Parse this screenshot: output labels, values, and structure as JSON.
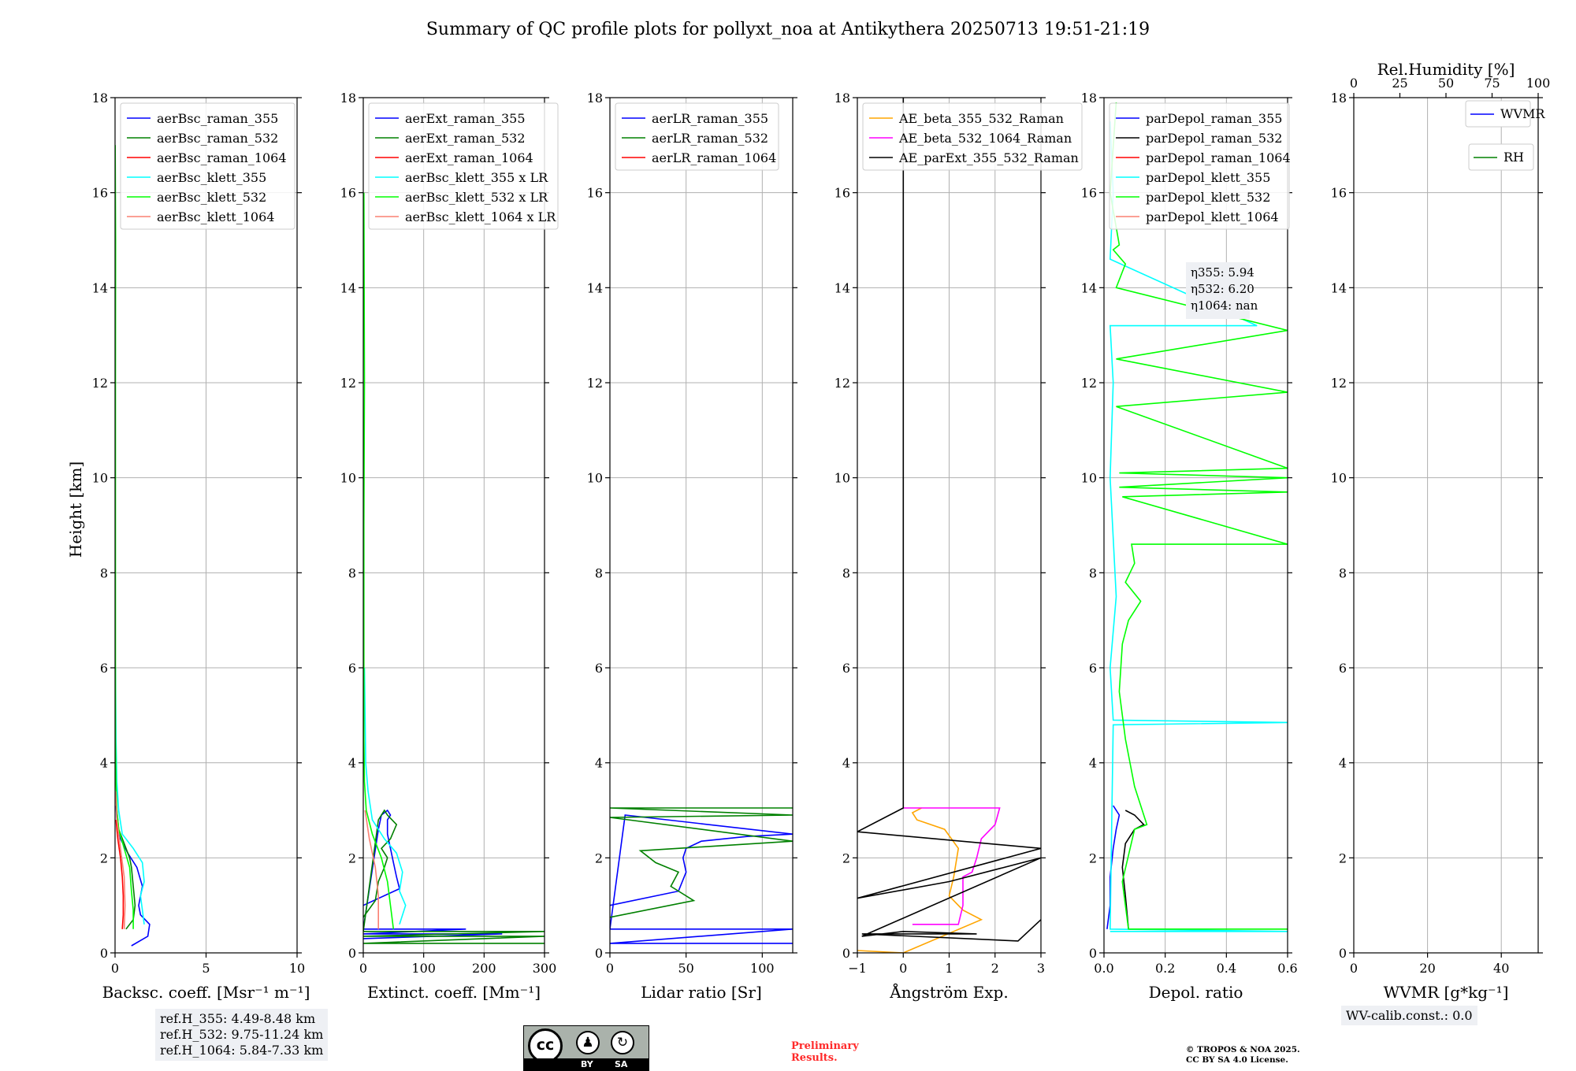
{
  "title": "Summary of QC profile plots for pollyxt_noa at Antikythera 20250713 19:51-21:19",
  "ref_heights": [
    "ref.H_355: 4.49-8.48 km",
    "ref.H_532: 9.75-11.24 km",
    "ref.H_1064: 5.84-7.33 km"
  ],
  "wv_calib": "WV-calib.const.: 0.0",
  "preliminary": [
    "Preliminary",
    "Results."
  ],
  "copyright": [
    "© TROPOS & NOA 2025.",
    "CC BY SA 4.0 License."
  ],
  "license_badge": {
    "cc": "cc",
    "by": "BY",
    "sa": "SA"
  },
  "colors": {
    "blue": "#0000ff",
    "green": "#008000",
    "red": "#ff0000",
    "cyan": "#00ffff",
    "lime": "#00ff00",
    "salmon": "#fa8072",
    "orange": "#ffa500",
    "magenta": "#ff00ff",
    "black": "#000000"
  },
  "chart_data": [
    {
      "type": "line",
      "id": "bsc",
      "xlabel": "Backsc. coeff. [Msr⁻¹ m⁻¹]",
      "ylabel": "Height [km]",
      "xlim": [
        0,
        10
      ],
      "ylim": [
        0,
        18
      ],
      "xticks": [
        "0",
        "5",
        "10"
      ],
      "yticks": [
        "0",
        "2",
        "4",
        "6",
        "8",
        "10",
        "12",
        "14",
        "16",
        "18"
      ],
      "legend": "top-left",
      "series": [
        {
          "name": "aerBsc_raman_355",
          "color": "#0000ff",
          "x": [
            0.9,
            1.8,
            1.9,
            1.4,
            1.3,
            1.5,
            1.2,
            0.7,
            0.3,
            0.1,
            0.05
          ],
          "y": [
            0.15,
            0.35,
            0.6,
            0.8,
            1.0,
            1.4,
            1.8,
            2.1,
            2.4,
            2.8,
            3.1
          ]
        },
        {
          "name": "aerBsc_raman_532",
          "color": "#008000",
          "x": [
            0.6,
            1.0,
            1.1,
            1.0,
            0.9,
            0.8,
            0.5,
            0.2,
            0.1
          ],
          "y": [
            0.5,
            0.7,
            1.0,
            1.4,
            1.8,
            2.0,
            2.3,
            2.6,
            3.0
          ]
        },
        {
          "name": "aerBsc_raman_1064",
          "color": "#ff0000",
          "x": [
            0.4,
            0.45,
            0.45,
            0.4,
            0.3,
            0.15,
            0.05
          ],
          "y": [
            0.5,
            0.8,
            1.2,
            1.6,
            2.0,
            2.4,
            2.8
          ]
        },
        {
          "name": "aerBsc_klett_355",
          "color": "#00ffff",
          "x": [
            1.6,
            1.5,
            1.4,
            1.6,
            1.5,
            1.0,
            0.4,
            0.2,
            0.1,
            0.05,
            0.02
          ],
          "y": [
            0.6,
            0.9,
            1.2,
            1.5,
            1.9,
            2.2,
            2.5,
            3.0,
            3.6,
            4.5,
            6.0
          ]
        },
        {
          "name": "aerBsc_klett_532",
          "color": "#00ff00",
          "x": [
            1.0,
            1.0,
            0.9,
            0.8,
            0.5,
            0.2,
            0.1,
            0.05,
            0.02,
            0.02,
            0.02,
            0.02,
            0.02,
            0.03,
            0.01
          ],
          "y": [
            0.5,
            0.9,
            1.3,
            1.8,
            2.2,
            2.6,
            3.0,
            3.6,
            4.5,
            6.0,
            8.0,
            10.0,
            12.0,
            15.0,
            17.0
          ]
        },
        {
          "name": "aerBsc_klett_1064",
          "color": "#fa8072",
          "x": [
            0.5,
            0.55,
            0.5,
            0.3,
            0.1,
            0.03
          ],
          "y": [
            0.5,
            1.0,
            1.6,
            2.2,
            2.8,
            3.4
          ]
        }
      ]
    },
    {
      "type": "line",
      "id": "ext",
      "xlabel": "Extinct. coeff. [Mm⁻¹]",
      "xlim": [
        0,
        300
      ],
      "ylim": [
        0,
        18
      ],
      "xticks": [
        "0",
        "100",
        "200",
        "300"
      ],
      "yticks": [
        "0",
        "2",
        "4",
        "6",
        "8",
        "10",
        "12",
        "14",
        "16",
        "18"
      ],
      "legend": "top-left",
      "series": [
        {
          "name": "aerExt_raman_355",
          "color": "#0000ff",
          "x": [
            0,
            60,
            55,
            50,
            45,
            40,
            40,
            45,
            40,
            30,
            25,
            0,
            170,
            0,
            230,
            0
          ],
          "y": [
            1.0,
            1.35,
            1.6,
            1.9,
            2.2,
            2.5,
            2.8,
            2.9,
            3.0,
            2.9,
            2.6,
            0.5,
            0.5,
            0.4,
            0.4,
            0.3
          ]
        },
        {
          "name": "aerExt_raman_532",
          "color": "#008000",
          "x": [
            0,
            20,
            25,
            35,
            40,
            30,
            45,
            55,
            40,
            35,
            25,
            0,
            300,
            0,
            300,
            0,
            300
          ],
          "y": [
            0.75,
            1.1,
            1.5,
            1.8,
            2.0,
            2.2,
            2.4,
            2.7,
            2.9,
            3.0,
            2.8,
            0.45,
            0.45,
            0.35,
            0.35,
            0.2,
            0.2
          ]
        },
        {
          "name": "aerExt_raman_1064",
          "color": "#ff0000",
          "x": [],
          "y": []
        },
        {
          "name": "aerBsc_klett_355 x LR",
          "color": "#00ffff",
          "x": [
            60,
            70,
            60,
            65,
            55,
            35,
            15,
            8,
            4,
            3,
            2
          ],
          "y": [
            0.6,
            1.0,
            1.3,
            1.7,
            2.1,
            2.4,
            2.8,
            3.4,
            4.0,
            5.0,
            6.0
          ]
        },
        {
          "name": "aerBsc_klett_532 x LR",
          "color": "#00ff00",
          "x": [
            50,
            45,
            40,
            30,
            15,
            5,
            2,
            1,
            1,
            1,
            2,
            1
          ],
          "y": [
            0.5,
            1.0,
            1.5,
            2.0,
            2.5,
            3.0,
            3.6,
            4.5,
            6.0,
            9.0,
            12.0,
            16.0
          ]
        },
        {
          "name": "aerBsc_klett_1064 x LR",
          "color": "#fa8072",
          "x": [
            25,
            25,
            20,
            10,
            3
          ],
          "y": [
            0.5,
            1.2,
            1.8,
            2.4,
            3.0
          ]
        }
      ]
    },
    {
      "type": "line",
      "id": "lr",
      "xlabel": "Lidar ratio [Sr]",
      "xlim": [
        0,
        120
      ],
      "ylim": [
        0,
        18
      ],
      "xticks": [
        "0",
        "50",
        "100"
      ],
      "yticks": [
        "0",
        "2",
        "4",
        "6",
        "8",
        "10",
        "12",
        "14",
        "16",
        "18"
      ],
      "legend": "top-left",
      "series": [
        {
          "name": "aerLR_raman_355",
          "color": "#0000ff",
          "x": [
            0,
            45,
            50,
            48,
            50,
            60,
            90,
            120,
            10,
            0,
            120,
            0,
            120
          ],
          "y": [
            1.0,
            1.3,
            1.7,
            2.0,
            2.2,
            2.35,
            2.45,
            2.5,
            2.9,
            0.5,
            0.5,
            0.2,
            0.2
          ]
        },
        {
          "name": "aerLR_raman_532",
          "color": "#008000",
          "x": [
            0,
            55,
            40,
            45,
            30,
            20,
            120,
            0,
            120,
            0,
            120
          ],
          "y": [
            0.75,
            1.1,
            1.4,
            1.7,
            1.9,
            2.15,
            2.35,
            2.85,
            2.9,
            3.05,
            3.05
          ]
        },
        {
          "name": "aerLR_raman_1064",
          "color": "#ff0000",
          "x": [],
          "y": []
        }
      ]
    },
    {
      "type": "line",
      "id": "ae",
      "xlabel": "Ångström Exp.",
      "xlim": [
        -1,
        3
      ],
      "ylim": [
        0,
        18
      ],
      "xticks": [
        "−1",
        "0",
        "1",
        "2",
        "3"
      ],
      "yticks": [
        "0",
        "2",
        "4",
        "6",
        "8",
        "10",
        "12",
        "14",
        "16",
        "18"
      ],
      "legend": "top-left",
      "series": [
        {
          "name": "AE_beta_355_532_Raman",
          "color": "#ffa500",
          "x": [
            -1,
            0,
            1.7,
            1.3,
            1.0,
            1.1,
            1.2,
            0.9,
            0.3,
            0.2,
            0.4
          ],
          "y": [
            0.05,
            0.0,
            0.7,
            0.9,
            1.2,
            1.6,
            2.2,
            2.6,
            2.8,
            2.95,
            3.05
          ]
        },
        {
          "name": "AE_beta_532_1064_Raman",
          "color": "#ff00ff",
          "x": [
            0.2,
            1.2,
            1.3,
            1.3,
            1.5,
            1.6,
            1.7,
            2.0,
            2.1,
            0
          ],
          "y": [
            0.6,
            0.6,
            1.0,
            1.6,
            1.7,
            2.0,
            2.4,
            2.7,
            3.05,
            3.05
          ]
        },
        {
          "name": "AE_parExt_355_532_Raman",
          "color": "#000000",
          "x": [
            0,
            0,
            -1,
            3,
            -1,
            1,
            3,
            -0.9,
            0,
            1.6,
            -0.9,
            2.5,
            3
          ],
          "y": [
            18,
            3.05,
            2.55,
            2.2,
            1.15,
            1.5,
            2.0,
            0.35,
            0.45,
            0.4,
            0.4,
            0.25,
            0.7
          ]
        }
      ]
    },
    {
      "type": "line",
      "id": "depol",
      "xlabel": "Depol. ratio",
      "xlim": [
        0,
        0.6
      ],
      "ylim": [
        0,
        18
      ],
      "xticks": [
        "0.0",
        "0.2",
        "0.4",
        "0.6"
      ],
      "yticks": [
        "0",
        "2",
        "4",
        "6",
        "8",
        "10",
        "12",
        "14",
        "16",
        "18"
      ],
      "legend": "top-left",
      "annotation": [
        "η355: 5.94",
        "η532: 6.20",
        "η1064: nan"
      ],
      "series": [
        {
          "name": "parDepol_raman_355",
          "color": "#0000ff",
          "x": [
            0.01,
            0.02,
            0.02,
            0.03,
            0.04,
            0.05,
            0.03
          ],
          "y": [
            0.5,
            1.0,
            1.6,
            2.2,
            2.6,
            2.9,
            3.1
          ]
        },
        {
          "name": "parDepol_raman_532",
          "color": "#000000",
          "x": [
            0.08,
            0.07,
            0.06,
            0.07,
            0.1,
            0.13,
            0.1,
            0.07
          ],
          "y": [
            0.5,
            1.2,
            1.8,
            2.3,
            2.6,
            2.7,
            2.9,
            3.0
          ]
        },
        {
          "name": "parDepol_raman_1064",
          "color": "#ff0000",
          "x": [],
          "y": []
        },
        {
          "name": "parDepol_klett_355",
          "color": "#00ffff",
          "x": [
            0.02,
            0.6,
            0.02,
            0.03,
            0.6,
            0.03,
            0.02,
            0.04,
            0.02,
            0.03,
            0.02,
            0.5,
            0.02,
            0.03,
            0.02
          ],
          "y": [
            0.45,
            0.45,
            0.5,
            4.8,
            4.85,
            4.9,
            6.0,
            7.5,
            10.0,
            12.0,
            13.2,
            13.2,
            14.6,
            16.0,
            17.5
          ]
        },
        {
          "name": "parDepol_klett_532",
          "color": "#00ff00",
          "x": [
            0.6,
            0.08,
            0.06,
            0.1,
            0.14,
            0.1,
            0.07,
            0.05,
            0.06,
            0.08,
            0.12,
            0.07,
            0.1,
            0.09,
            0.6,
            0.06,
            0.6,
            0.05,
            0.6,
            0.05,
            0.6,
            0.04,
            0.6,
            0.04,
            0.6,
            0.04,
            0.07,
            0.03,
            0.05,
            0.02,
            0.04
          ],
          "y": [
            0.5,
            0.5,
            1.5,
            2.6,
            2.7,
            3.5,
            4.5,
            5.5,
            6.5,
            7.0,
            7.4,
            7.8,
            8.2,
            8.6,
            8.6,
            9.6,
            9.7,
            9.8,
            10.0,
            10.1,
            10.2,
            11.5,
            11.8,
            12.5,
            13.1,
            14.0,
            14.5,
            14.8,
            14.9,
            16.0,
            17.9
          ]
        },
        {
          "name": "parDepol_klett_1064",
          "color": "#fa8072",
          "x": [],
          "y": []
        }
      ]
    },
    {
      "type": "line",
      "id": "wv",
      "xlabel": "WVMR [g*kg⁻¹]",
      "x2label": "Rel.Humidity [%]",
      "xlim": [
        0,
        50
      ],
      "x2lim": [
        0,
        100
      ],
      "ylim": [
        0,
        18
      ],
      "xticks": [
        "0",
        "20",
        "40"
      ],
      "x2ticks": [
        "0",
        "25",
        "50",
        "75",
        "100"
      ],
      "yticks": [
        "0",
        "2",
        "4",
        "6",
        "8",
        "10",
        "12",
        "14",
        "16",
        "18"
      ],
      "legend": "top-right",
      "series": [
        {
          "name": "WVMR",
          "color": "#0000ff",
          "x": [],
          "y": []
        },
        {
          "name": "RH",
          "color": "#008000",
          "x": [],
          "y": []
        }
      ]
    }
  ]
}
